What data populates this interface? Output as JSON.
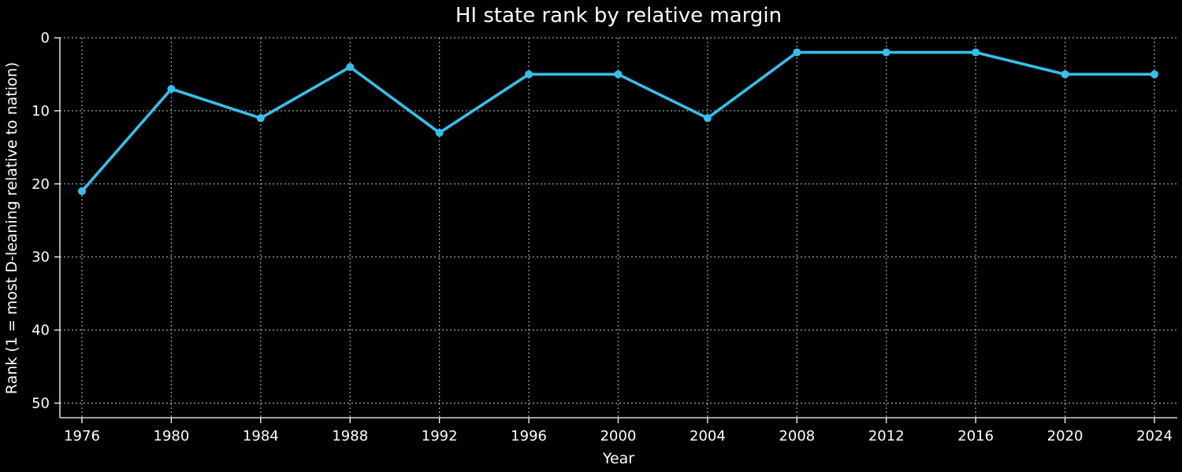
{
  "chart_data": {
    "type": "line",
    "title": "HI state rank by relative margin",
    "xlabel": "Year",
    "ylabel": "Rank (1 = most D-leaning relative to nation)",
    "x": [
      1976,
      1980,
      1984,
      1988,
      1992,
      1996,
      2000,
      2004,
      2008,
      2012,
      2016,
      2020,
      2024
    ],
    "series": [
      {
        "values": [
          21,
          7,
          11,
          4,
          13,
          5,
          5,
          11,
          2,
          2,
          2,
          5,
          5
        ]
      }
    ],
    "xticks": [
      "1976",
      "1980",
      "1984",
      "1988",
      "1992",
      "1996",
      "2000",
      "2004",
      "2008",
      "2012",
      "2016",
      "2020",
      "2024"
    ],
    "yticks": [
      "0",
      "10",
      "20",
      "30",
      "40",
      "50"
    ],
    "ylim": [
      52,
      0
    ],
    "y_inverted": true,
    "grid": true,
    "line_color": "#35c0ec",
    "background": "#000000"
  }
}
